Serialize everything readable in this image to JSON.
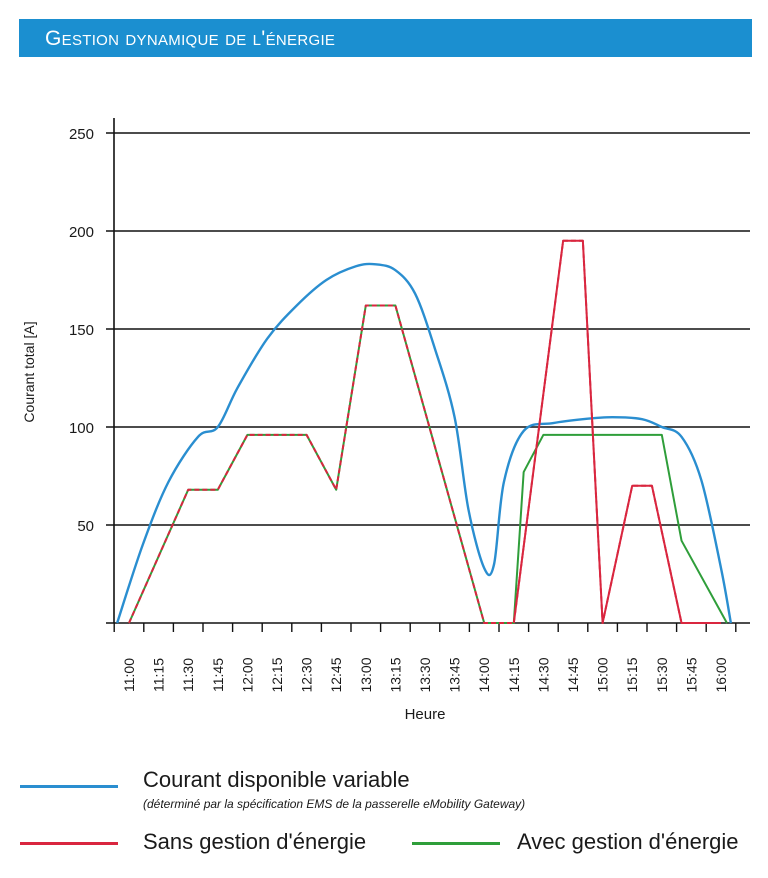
{
  "header": {
    "title": "Gestion dynamique de l'énergie"
  },
  "colors": {
    "banner": "#1b8fd0",
    "available": "#2a8ed0",
    "without": "#d9263f",
    "with": "#2f9e3a"
  },
  "chart_data": {
    "type": "line",
    "title": "",
    "xlabel": "Heure",
    "ylabel": "Courant total [A]",
    "ylim": [
      0,
      250
    ],
    "yticks": [
      50,
      100,
      150,
      200,
      250
    ],
    "grid": "horizontal",
    "categories": [
      "11:00",
      "11:15",
      "11:30",
      "11:45",
      "12:00",
      "12:15",
      "12:30",
      "12:45",
      "13:00",
      "13:15",
      "13:30",
      "13:45",
      "14:00",
      "14:15",
      "14:30",
      "14:45",
      "15:00",
      "15:15",
      "15:30",
      "15:45",
      "16:00"
    ],
    "series": [
      {
        "name": "Courant disponible variable",
        "color": "#2a8ed0",
        "smooth": true,
        "x": [
          "10:54",
          "11:07",
          "11:20",
          "11:35",
          "11:45",
          "11:55",
          "12:10",
          "12:25",
          "12:40",
          "12:55",
          "13:05",
          "13:15",
          "13:25",
          "13:35",
          "13:45",
          "13:52",
          "14:00",
          "14:05",
          "14:10",
          "14:20",
          "14:35",
          "14:50",
          "15:05",
          "15:20",
          "15:30",
          "15:40",
          "15:50",
          "16:00",
          "16:05"
        ],
        "values": [
          0,
          40,
          72,
          95,
          100,
          120,
          145,
          162,
          175,
          182,
          183,
          180,
          168,
          140,
          105,
          58,
          28,
          30,
          72,
          98,
          102,
          104,
          105,
          104,
          100,
          95,
          73,
          28,
          0
        ]
      },
      {
        "name": "Sans gestion d'énergie",
        "color": "#d9263f",
        "x": [
          "11:00",
          "11:30",
          "11:45",
          "12:00",
          "12:30",
          "12:45",
          "13:00",
          "13:15",
          "14:00",
          "14:15",
          "14:40",
          "14:50",
          "15:00",
          "15:15",
          "15:25",
          "15:40",
          "16:00"
        ],
        "values": [
          0,
          68,
          68,
          96,
          96,
          68,
          162,
          162,
          0,
          0,
          195,
          195,
          0,
          70,
          70,
          0,
          0
        ]
      },
      {
        "name": "Avec gestion d'énergie",
        "color": "#2f9e3a",
        "x": [
          "11:00",
          "11:30",
          "11:45",
          "12:00",
          "12:30",
          "12:45",
          "13:00",
          "13:15",
          "14:00",
          "14:15",
          "14:20",
          "14:30",
          "15:30",
          "15:40",
          "16:03"
        ],
        "values": [
          0,
          68,
          68,
          96,
          96,
          68,
          162,
          162,
          0,
          0,
          77,
          96,
          96,
          42,
          0
        ]
      }
    ],
    "legend": "bottom"
  },
  "legend": {
    "available_label": "Courant disponible variable",
    "available_note": "(déterminé par la spécification EMS de la passerelle eMobility Gateway)",
    "without_label": "Sans gestion d'énergie",
    "with_label": "Avec gestion d'énergie"
  }
}
